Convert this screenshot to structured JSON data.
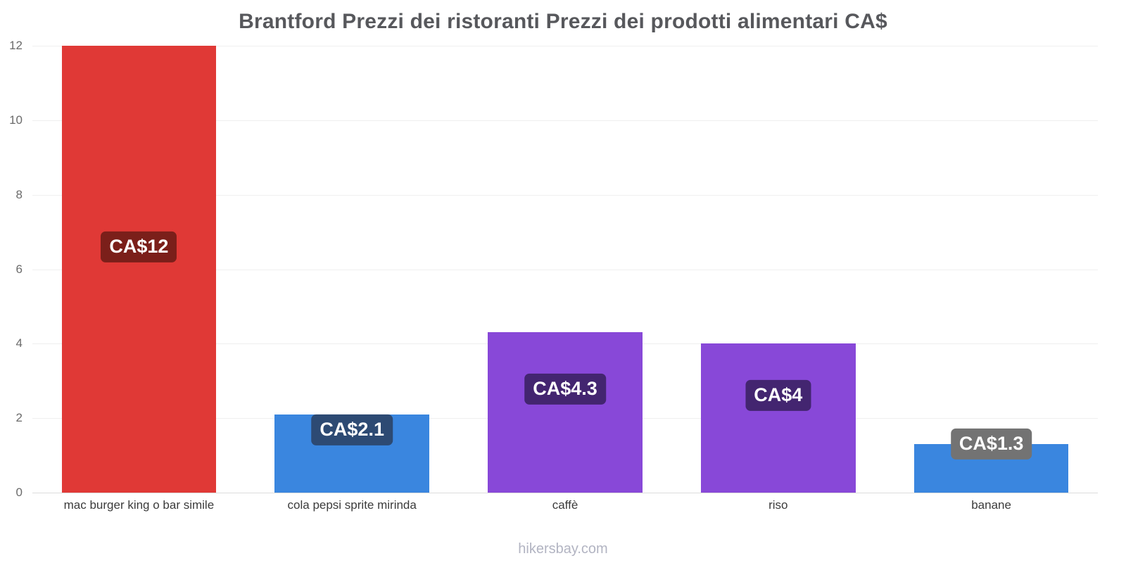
{
  "chart_data": {
    "type": "bar",
    "title": "Brantford Prezzi dei ristoranti Prezzi dei prodotti alimentari CA$",
    "categories": [
      "mac burger king o bar simile",
      "cola pepsi sprite mirinda",
      "caffè",
      "riso",
      "banane"
    ],
    "values": [
      12,
      2.1,
      4.3,
      4,
      1.3
    ],
    "value_labels": [
      "CA$12",
      "CA$2.1",
      "CA$4.3",
      "CA$4",
      "CA$1.3"
    ],
    "bar_colors": [
      "#e03936",
      "#3a86df",
      "#8848d8",
      "#8848d8",
      "#3a86df"
    ],
    "label_bg_colors": [
      "#7b1f1a",
      "#2d4a73",
      "#432570",
      "#432570",
      "#737373"
    ],
    "label_y_units": [
      6.6,
      1.68,
      2.78,
      2.61,
      1.3
    ],
    "ylim": [
      0,
      12
    ],
    "yticks": [
      0,
      2,
      4,
      6,
      8,
      10,
      12
    ],
    "grid": true,
    "legend": "none",
    "footer": "hikersbay.com"
  }
}
